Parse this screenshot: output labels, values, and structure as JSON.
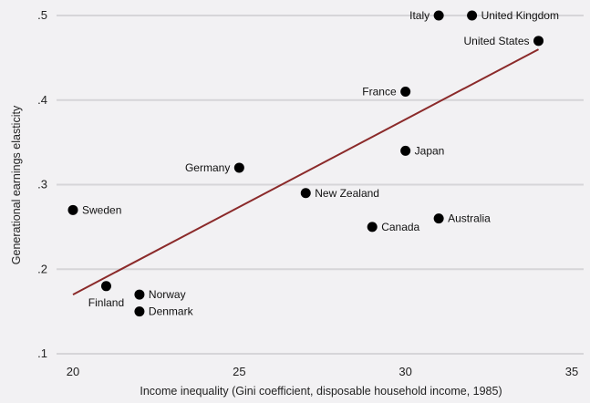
{
  "chart_data": {
    "type": "scatter",
    "title": "",
    "xlabel": "Income inequality (Gini coefficient, disposable household income, 1985)",
    "ylabel": "Generational earnings elasticity",
    "xlim": [
      20,
      35
    ],
    "ylim": [
      0.1,
      0.5
    ],
    "x_ticks": [
      20,
      25,
      30,
      35
    ],
    "x_tick_labels": [
      "20",
      "25",
      "30",
      "35"
    ],
    "y_ticks": [
      0.1,
      0.2,
      0.3,
      0.4,
      0.5
    ],
    "y_tick_labels": [
      ".1",
      ".2",
      ".3",
      ".4",
      ".5"
    ],
    "grid": "horizontal",
    "legend": "none",
    "points": [
      {
        "label": "Sweden",
        "x": 20,
        "y": 0.27,
        "label_pos": "right"
      },
      {
        "label": "Finland",
        "x": 21,
        "y": 0.18,
        "label_pos": "below"
      },
      {
        "label": "Norway",
        "x": 22,
        "y": 0.17,
        "label_pos": "right"
      },
      {
        "label": "Denmark",
        "x": 22,
        "y": 0.15,
        "label_pos": "right"
      },
      {
        "label": "Germany",
        "x": 25,
        "y": 0.32,
        "label_pos": "left"
      },
      {
        "label": "New Zealand",
        "x": 27,
        "y": 0.29,
        "label_pos": "right"
      },
      {
        "label": "Canada",
        "x": 29,
        "y": 0.25,
        "label_pos": "right"
      },
      {
        "label": "Japan",
        "x": 30,
        "y": 0.34,
        "label_pos": "right"
      },
      {
        "label": "France",
        "x": 30,
        "y": 0.41,
        "label_pos": "left"
      },
      {
        "label": "Australia",
        "x": 31,
        "y": 0.26,
        "label_pos": "right"
      },
      {
        "label": "Italy",
        "x": 31,
        "y": 0.5,
        "label_pos": "left"
      },
      {
        "label": "United Kingdom",
        "x": 32,
        "y": 0.5,
        "label_pos": "right"
      },
      {
        "label": "United States",
        "x": 34,
        "y": 0.47,
        "label_pos": "left"
      }
    ],
    "trend_line": {
      "x1": 20,
      "y1": 0.17,
      "x2": 34,
      "y2": 0.46,
      "color": "#8b2a2a"
    },
    "colors": {
      "background": "#f2f1f3",
      "grid": "#d6d5d8",
      "point": "#000000",
      "trend": "#8b2a2a"
    }
  }
}
